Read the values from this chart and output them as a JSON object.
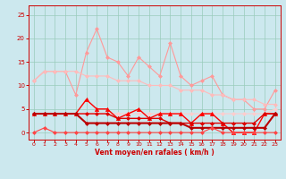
{
  "x": [
    0,
    1,
    2,
    3,
    4,
    5,
    6,
    7,
    8,
    9,
    10,
    11,
    12,
    13,
    14,
    15,
    16,
    17,
    18,
    19,
    20,
    21,
    22,
    23
  ],
  "series": [
    {
      "name": "line1_pink_zigzag",
      "color": "#ff9999",
      "linewidth": 0.8,
      "marker": "D",
      "markersize": 2.0,
      "y": [
        11,
        13,
        13,
        13,
        8,
        17,
        22,
        16,
        15,
        12,
        16,
        14,
        12,
        19,
        12,
        10,
        11,
        12,
        8,
        7,
        7,
        5,
        5,
        9
      ]
    },
    {
      "name": "line2_pink_upper_trend",
      "color": "#ffbbbb",
      "linewidth": 0.8,
      "marker": "D",
      "markersize": 2.0,
      "y": [
        11,
        13,
        13,
        13,
        13,
        12,
        12,
        12,
        11,
        11,
        11,
        10,
        10,
        10,
        9,
        9,
        9,
        8,
        8,
        7,
        7,
        7,
        6,
        6
      ]
    },
    {
      "name": "line3_pink_lower_trend",
      "color": "#ffcccc",
      "linewidth": 0.8,
      "marker": "D",
      "markersize": 2.0,
      "y": [
        4,
        4,
        4,
        4,
        4,
        4,
        4,
        4,
        4,
        4,
        4,
        4,
        4,
        4,
        4,
        4,
        4,
        4,
        4,
        4,
        4,
        4,
        4,
        5
      ]
    },
    {
      "name": "line4_red_upper",
      "color": "#ff0000",
      "linewidth": 1.0,
      "marker": "^",
      "markersize": 3.0,
      "y": [
        4,
        4,
        4,
        4,
        4,
        7,
        5,
        5,
        3,
        4,
        5,
        3,
        4,
        4,
        4,
        2,
        4,
        4,
        2,
        0,
        0,
        0,
        4,
        4
      ]
    },
    {
      "name": "line5_red_mid",
      "color": "#dd0000",
      "linewidth": 1.0,
      "marker": "D",
      "markersize": 2.0,
      "y": [
        4,
        4,
        4,
        4,
        4,
        4,
        4,
        4,
        3,
        3,
        3,
        3,
        3,
        2,
        2,
        2,
        2,
        2,
        2,
        2,
        2,
        2,
        4,
        4
      ]
    },
    {
      "name": "line6_darkred_flat",
      "color": "#bb0000",
      "linewidth": 1.5,
      "marker": "D",
      "markersize": 2.0,
      "y": [
        4,
        4,
        4,
        4,
        4,
        2,
        2,
        2,
        2,
        2,
        2,
        2,
        2,
        2,
        2,
        1,
        1,
        1,
        1,
        1,
        1,
        1,
        1,
        4
      ]
    },
    {
      "name": "line7_red_bottom",
      "color": "#ff4444",
      "linewidth": 0.8,
      "marker": "D",
      "markersize": 2.0,
      "y": [
        0,
        1,
        0,
        0,
        0,
        0,
        0,
        0,
        0,
        0,
        0,
        0,
        0,
        0,
        0,
        0,
        0,
        1,
        0,
        0,
        0,
        0,
        0,
        0
      ]
    }
  ],
  "xlabel": "Vent moyen/en rafales ( km/h )",
  "xlim": [
    -0.5,
    23.5
  ],
  "ylim": [
    -1.5,
    27
  ],
  "yticks": [
    0,
    5,
    10,
    15,
    20,
    25
  ],
  "xticks": [
    0,
    1,
    2,
    3,
    4,
    5,
    6,
    7,
    8,
    9,
    10,
    11,
    12,
    13,
    14,
    15,
    16,
    17,
    18,
    19,
    20,
    21,
    22,
    23
  ],
  "background_color": "#cce8ee",
  "grid_color": "#99ccbb",
  "tick_color": "#cc0000",
  "label_color": "#cc0000",
  "spine_color": "#cc0000"
}
